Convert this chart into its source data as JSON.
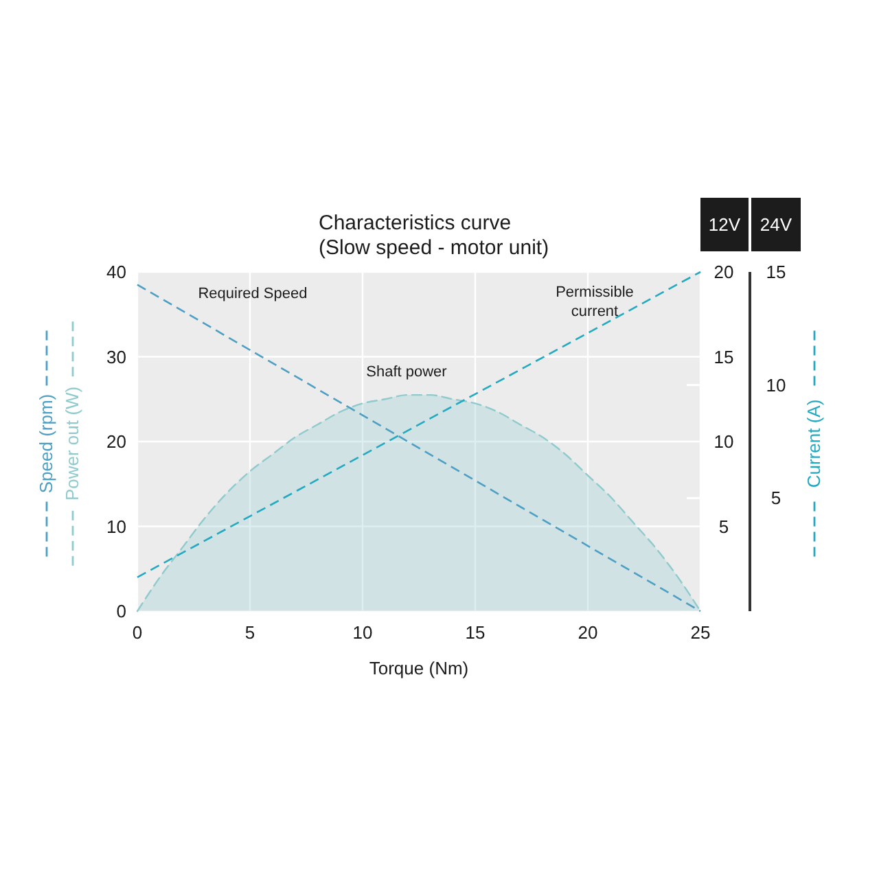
{
  "chart_data": {
    "type": "line",
    "title": "Characteristics curve",
    "subtitle": "(Slow speed - motor unit)",
    "xlabel": "Torque (Nm)",
    "y2label": "12V",
    "y3label": "24V",
    "xlim": [
      0,
      25
    ],
    "xticks": [
      0,
      5,
      10,
      15,
      20,
      25
    ],
    "ylim": [
      0,
      40
    ],
    "yticks": [
      0,
      10,
      20,
      30,
      40
    ],
    "y2lim": [
      0,
      20
    ],
    "y2ticks": [
      5,
      10,
      15,
      20
    ],
    "y3lim": [
      0,
      15
    ],
    "y3ticks": [
      5,
      10,
      15
    ],
    "grid": true,
    "legend": "left",
    "series": [
      {
        "name": "Speed (rpm)",
        "color": "#4d9fc4",
        "line_style": "dashed",
        "x": [
          0,
          25
        ],
        "values": [
          38.5,
          0
        ]
      },
      {
        "name": "Power out (W)",
        "type": "area",
        "color": "#8fcacd",
        "line_style": "dashed",
        "x": [
          0,
          1,
          2,
          3,
          4,
          5,
          6,
          7,
          8,
          9,
          10,
          11,
          12,
          13,
          14,
          15,
          16,
          17,
          18,
          19,
          20,
          21,
          22,
          23,
          24,
          25
        ],
        "values": [
          0,
          4,
          7.5,
          11,
          14,
          16.5,
          18.5,
          20.5,
          22,
          23.5,
          24.5,
          25,
          25.5,
          25.5,
          25,
          24.5,
          23.5,
          22,
          20.5,
          18.5,
          16,
          13.5,
          10.5,
          7.5,
          4,
          0
        ]
      },
      {
        "name": "Current (A)",
        "axis": "y2",
        "color": "#23a9c1",
        "line_style": "dashed",
        "x": [
          0,
          25
        ],
        "values": [
          2,
          20
        ]
      }
    ],
    "annotations": [
      "Required Speed",
      "Shaft power",
      "Permissible\ncurrent"
    ]
  }
}
